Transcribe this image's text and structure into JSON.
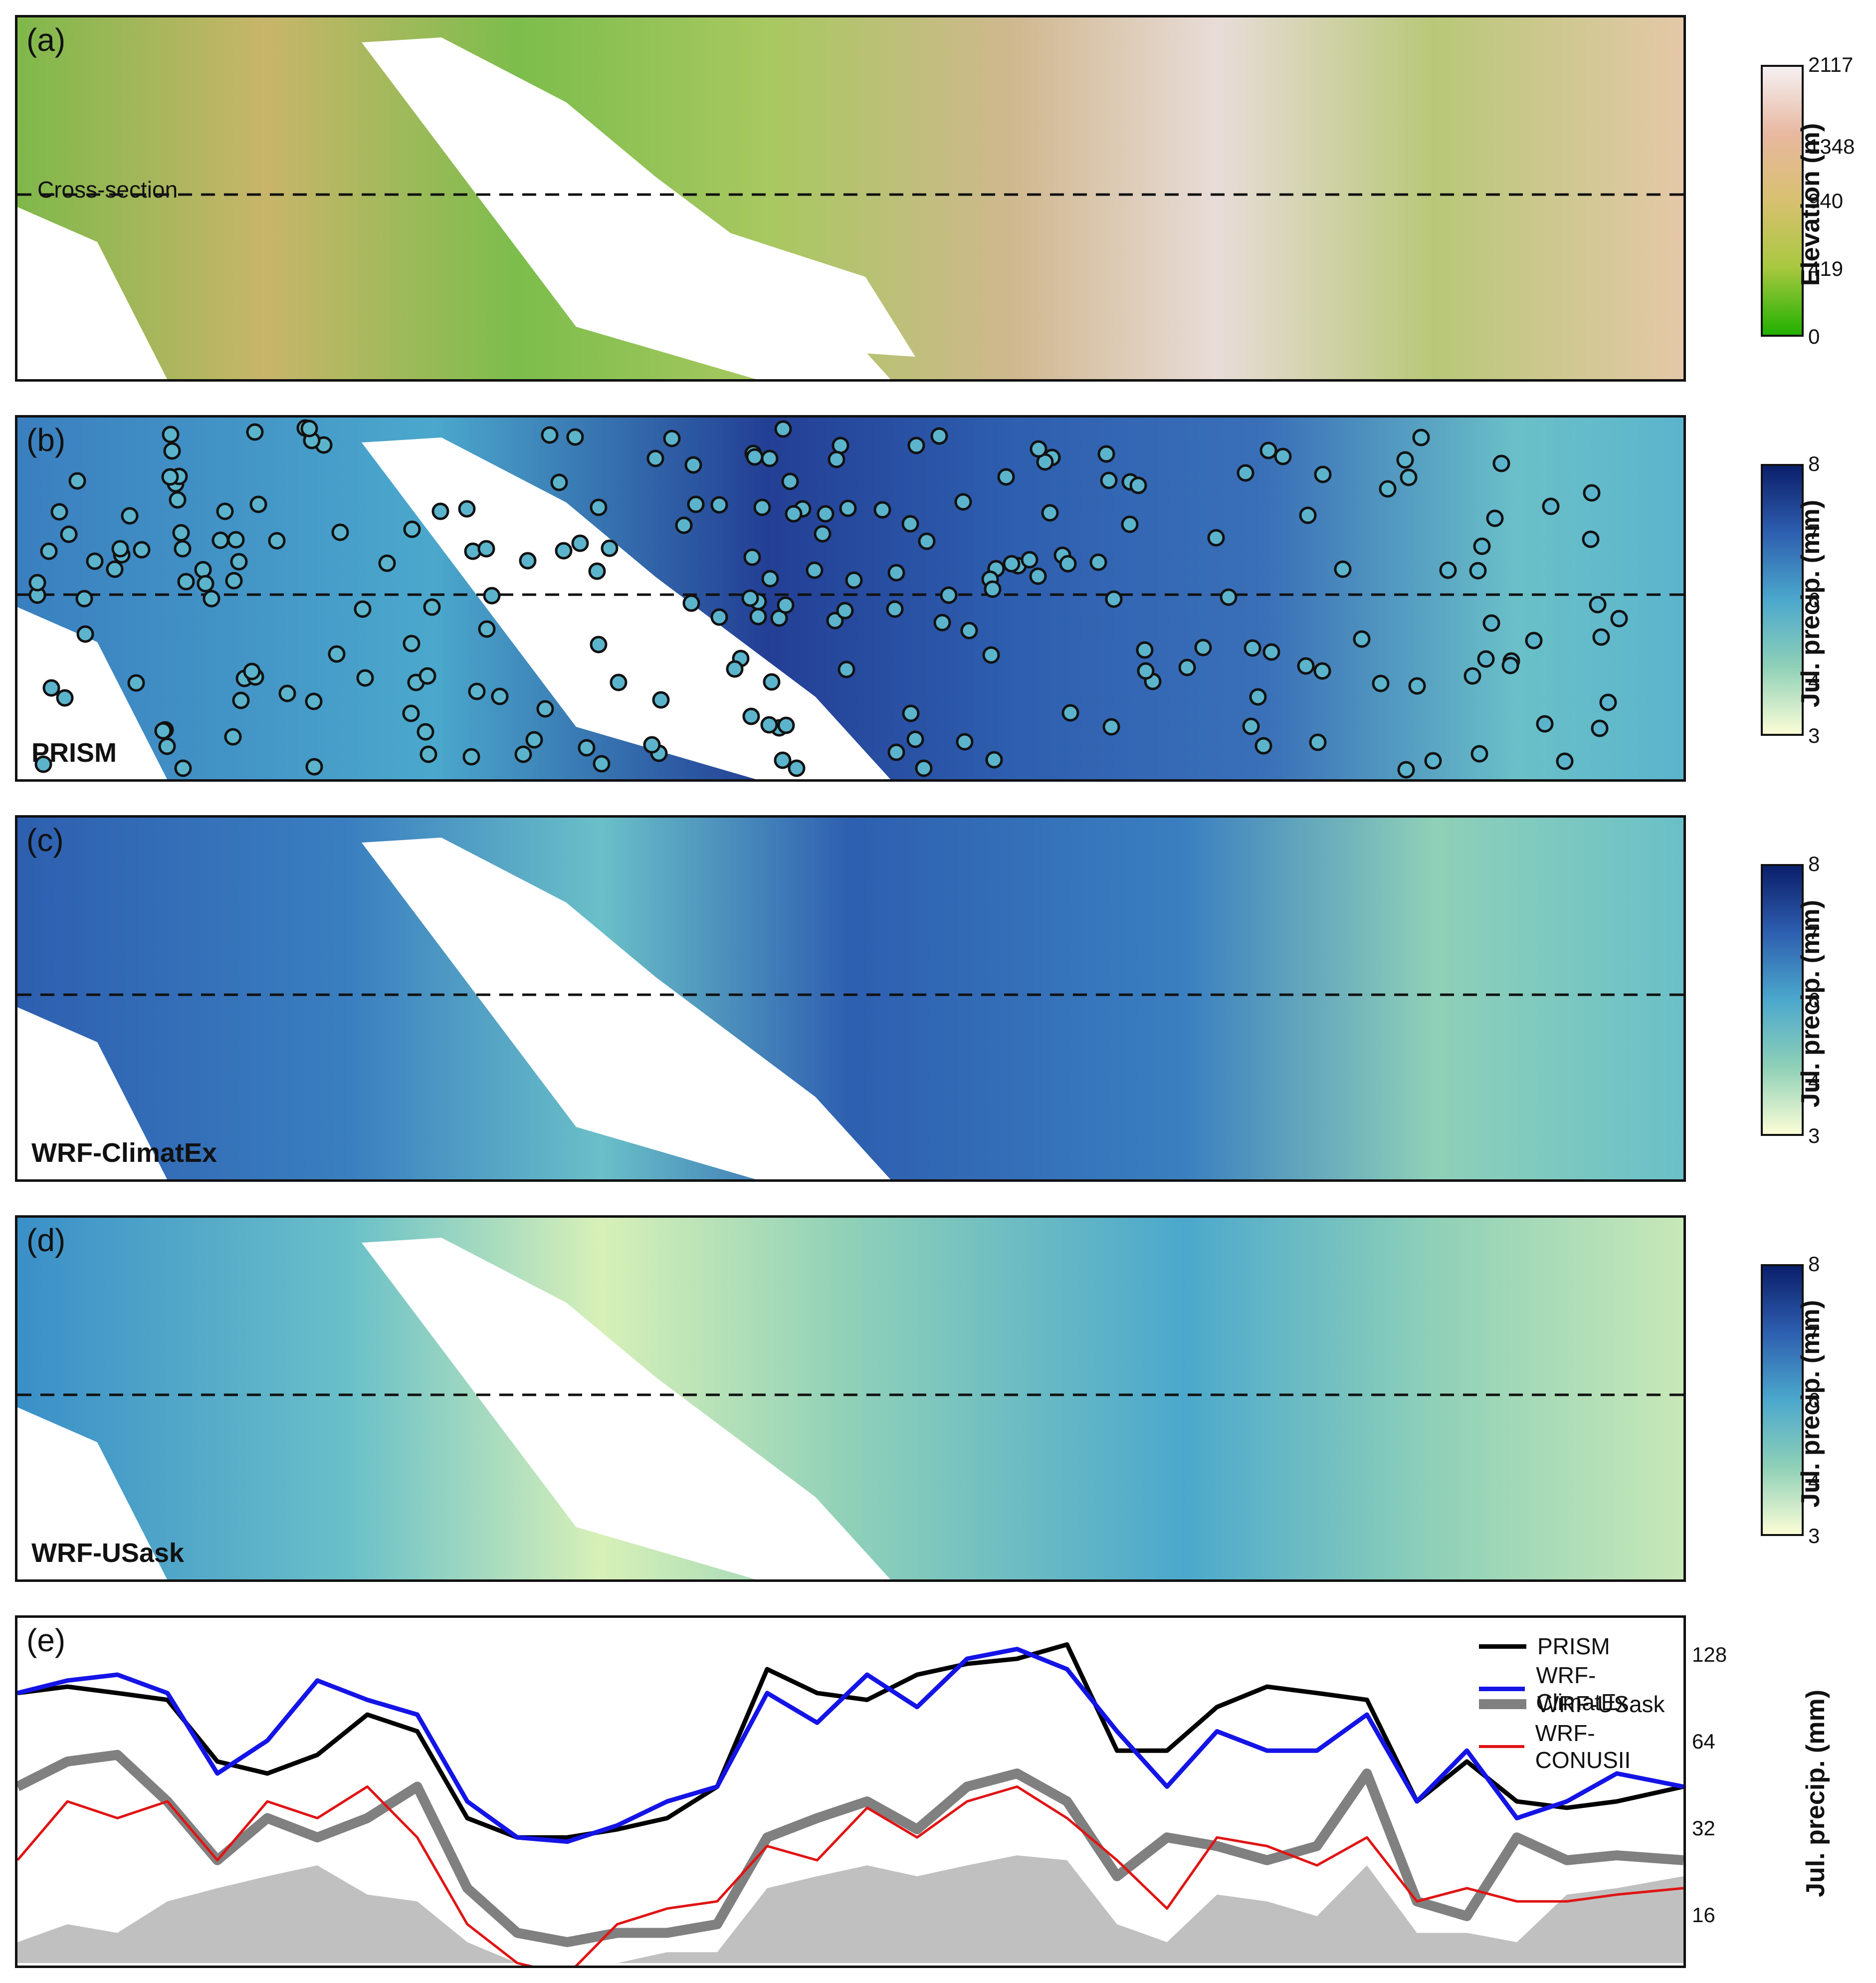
{
  "panels": {
    "a": {
      "label": "(a)",
      "annotation": "Cross-section"
    },
    "b": {
      "label": "(b)",
      "model": "PRISM"
    },
    "c": {
      "label": "(c)",
      "model": "WRF-ClimatEx"
    },
    "d": {
      "label": "(d)",
      "model": "WRF-USask"
    },
    "e": {
      "label": "(e)"
    }
  },
  "colorbars": {
    "elevation": {
      "label": "Elevation (m)",
      "ticks": [
        "2117",
        "1348",
        "940",
        "419",
        "0"
      ],
      "colors": [
        "#f5f0f2",
        "#e8b8a0",
        "#d8c070",
        "#a8c840",
        "#22b000"
      ]
    },
    "precip_b": {
      "label": "Jul. precip. (mm)",
      "ticks": [
        "8",
        "7",
        "6",
        "4",
        "3"
      ]
    },
    "precip_c": {
      "label": "Jul. precip. (mm)",
      "ticks": [
        "8",
        "7",
        "6",
        "4",
        "3"
      ]
    },
    "precip_d": {
      "label": "Jul. precip. (mm)",
      "ticks": [
        "8",
        "7",
        "6",
        "4",
        "3"
      ]
    },
    "precip_colors": [
      "#0b1f6b",
      "#2e5fb0",
      "#4ba8cc",
      "#8fd0b8",
      "#fbfdd6"
    ]
  },
  "chart_data": {
    "type": "line",
    "ylabel": "Jul. precip. (mm)",
    "yscale": "log2",
    "yticks": [
      16,
      32,
      64,
      128
    ],
    "ylim": [
      11,
      160
    ],
    "x": [
      0,
      0.03,
      0.06,
      0.09,
      0.12,
      0.15,
      0.18,
      0.21,
      0.24,
      0.27,
      0.3,
      0.33,
      0.36,
      0.39,
      0.42,
      0.45,
      0.48,
      0.51,
      0.54,
      0.57,
      0.6,
      0.63,
      0.66,
      0.69,
      0.72,
      0.75,
      0.78,
      0.81,
      0.84,
      0.87,
      0.9,
      0.93,
      0.96,
      1.0
    ],
    "series": [
      {
        "name": "PRISM",
        "color": "#000000",
        "width": 9,
        "values": [
          95,
          100,
          95,
          90,
          55,
          50,
          58,
          80,
          70,
          35,
          30,
          30,
          32,
          35,
          45,
          115,
          95,
          90,
          110,
          120,
          125,
          140,
          60,
          60,
          85,
          100,
          95,
          90,
          40,
          55,
          40,
          38,
          40,
          45
        ]
      },
      {
        "name": "WRF-ClimatEx",
        "color": "#1414e6",
        "width": 9,
        "values": [
          95,
          105,
          110,
          95,
          50,
          65,
          105,
          90,
          80,
          40,
          30,
          29,
          33,
          40,
          45,
          95,
          75,
          110,
          85,
          125,
          135,
          115,
          70,
          45,
          70,
          60,
          60,
          80,
          40,
          60,
          35,
          40,
          50,
          45
        ]
      },
      {
        "name": "WRF-USask",
        "color": "#808080",
        "width": 20,
        "values": [
          45,
          55,
          58,
          40,
          25,
          35,
          30,
          35,
          45,
          20,
          14,
          13,
          14,
          14,
          15,
          30,
          35,
          40,
          32,
          45,
          50,
          40,
          22,
          30,
          28,
          25,
          28,
          50,
          18,
          16,
          30,
          25,
          26,
          25
        ]
      },
      {
        "name": "WRF-CONUSII",
        "color": "#e01414",
        "width": 5,
        "values": [
          25,
          40,
          35,
          40,
          25,
          40,
          35,
          45,
          30,
          15,
          11,
          10,
          15,
          17,
          18,
          28,
          25,
          38,
          30,
          40,
          45,
          35,
          25,
          17,
          30,
          28,
          24,
          30,
          18,
          20,
          18,
          18,
          19,
          20
        ]
      }
    ],
    "elevation_profile_scaled": [
      13,
      15,
      14,
      18,
      20,
      22,
      24,
      19,
      18,
      13,
      11,
      11,
      11,
      12,
      12,
      20,
      22,
      24,
      22,
      24,
      26,
      25,
      15,
      13,
      19,
      18,
      16,
      24,
      14,
      14,
      13,
      19,
      20,
      22
    ]
  }
}
